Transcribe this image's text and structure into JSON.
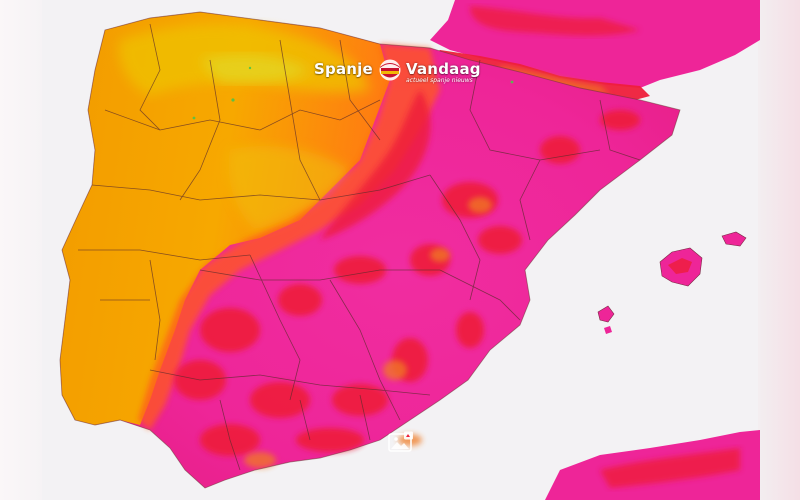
{
  "logo": {
    "word_left": "Spanje",
    "word_right": "Vandaag",
    "tagline": "actueel spanje nieuws"
  },
  "map": {
    "palette": {
      "sea": "#f3f2f4",
      "cool": "#f6a800",
      "warm": "#ff7a12",
      "hot": "#ee1d3a",
      "extreme": "#f0219f",
      "cooler_highland": "#e9d322",
      "border": "#5b2b2b"
    }
  },
  "icons": {
    "watermark_badge": "flag-badge-icon",
    "image_placeholder": "image-placeholder-icon"
  }
}
